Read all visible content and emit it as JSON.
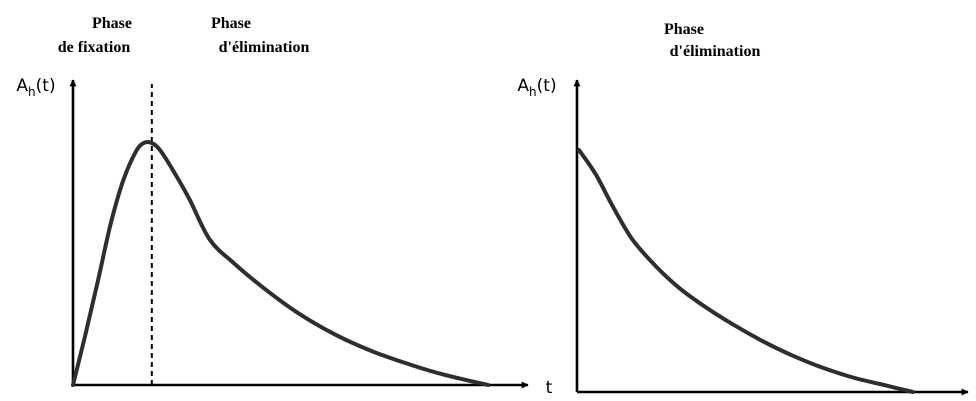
{
  "chart_data": [
    {
      "type": "line",
      "title": "",
      "phase_labels": [
        {
          "line1": "Phase",
          "line2": "de fixation"
        },
        {
          "line1": "Phase",
          "line2": "d'élimination"
        }
      ],
      "ylabel_main": "A",
      "ylabel_sub": "h",
      "ylabel_tail": "(t)",
      "xlabel": "t",
      "xlim": [
        0,
        10
      ],
      "ylim": [
        0,
        1.15
      ],
      "grid": false,
      "peak_marker": {
        "x": 1.9,
        "style": "dashed"
      },
      "series": [
        {
          "x": [
            0,
            0.3,
            0.6,
            0.9,
            1.2,
            1.5,
            1.7,
            1.9,
            2.1,
            2.4,
            2.8,
            3.3,
            3.9,
            4.6,
            5.4,
            6.3,
            7.2,
            8.2,
            9.0,
            10.0
          ],
          "y": [
            0,
            0.21,
            0.43,
            0.66,
            0.84,
            0.96,
            1.0,
            1.0,
            0.97,
            0.89,
            0.77,
            0.6,
            0.5,
            0.4,
            0.3,
            0.21,
            0.14,
            0.08,
            0.04,
            0.0
          ]
        }
      ]
    },
    {
      "type": "line",
      "title": "",
      "phase_labels": [
        {
          "line1": "Phase",
          "line2": "d'élimination"
        }
      ],
      "ylabel_main": "A",
      "ylabel_sub": "h",
      "ylabel_tail": "(t)",
      "xlabel": "",
      "xlim": [
        0,
        10
      ],
      "ylim": [
        0,
        1.15
      ],
      "grid": false,
      "series": [
        {
          "x": [
            0,
            0.5,
            1.0,
            1.6,
            2.3,
            3.0,
            3.8,
            4.6,
            5.5,
            6.4,
            7.3,
            8.2,
            9.1,
            10.0
          ],
          "y": [
            1.0,
            0.9,
            0.77,
            0.63,
            0.52,
            0.43,
            0.35,
            0.28,
            0.21,
            0.15,
            0.1,
            0.06,
            0.03,
            0.0
          ]
        }
      ]
    }
  ]
}
